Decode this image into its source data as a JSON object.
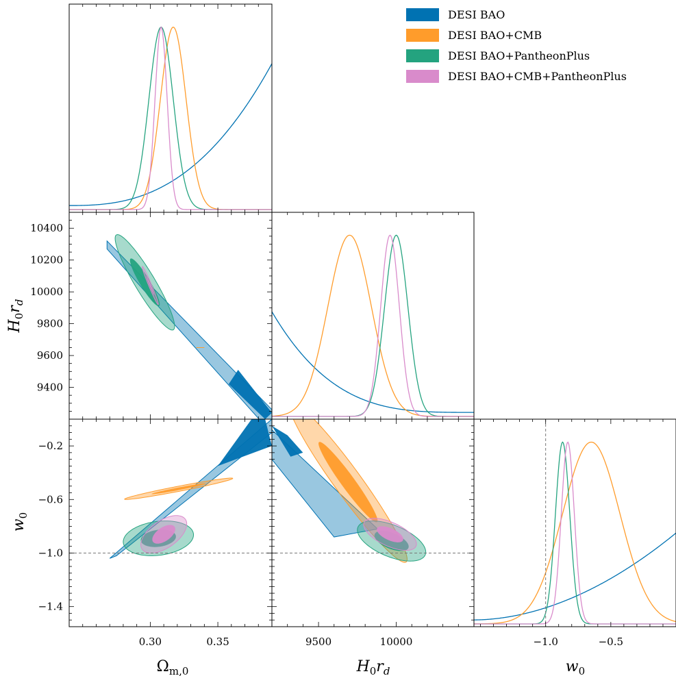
{
  "chart_data": {
    "type": "corner",
    "parameters": [
      {
        "key": "om",
        "label_base": "Ω",
        "label_sub": "m,0",
        "range": [
          0.24,
          0.39
        ],
        "ticks": [
          0.3,
          0.35
        ],
        "tick_labels": [
          "0.30",
          "0.35"
        ]
      },
      {
        "key": "hrd",
        "label_base": "H",
        "label_sub0": "0",
        "label_mid": "r",
        "label_sub1": "d",
        "range": [
          9200,
          10500
        ],
        "ticks": [
          9400,
          9600,
          9800,
          10000,
          10200,
          10400
        ],
        "tick_labels_y": [
          "9400",
          "9600",
          "9800",
          "10000",
          "10200",
          "10400"
        ],
        "x_ticks": [
          9500,
          10000
        ],
        "tick_labels_x": [
          "9500",
          "10000"
        ]
      },
      {
        "key": "w0",
        "label_base": "w",
        "label_sub": "0",
        "range": [
          -1.55,
          0.0
        ],
        "ticks": [
          -1.4,
          -1.0,
          -0.6,
          -0.2
        ],
        "tick_labels_y": [
          "−1.4",
          "−1.0",
          "−0.6",
          "−0.2"
        ],
        "x_ticks": [
          -1.0,
          -0.5
        ],
        "tick_labels_x": [
          "−1.0",
          "−0.5"
        ]
      }
    ],
    "reference_lines": {
      "w0": -1.0
    },
    "series": [
      {
        "name": "DESI BAO",
        "color": "#0072b2",
        "marginals": {
          "om": {
            "type": "rising",
            "start": 0.24,
            "end": 0.39,
            "y0": 0.02,
            "y1": 0.72,
            "curv": 2.6
          },
          "hrd": {
            "type": "falling",
            "start": 9200,
            "end": 10500,
            "y0": 0.52,
            "y1": 0.02,
            "curv": 0.45
          },
          "w0": {
            "type": "rising",
            "start": -1.55,
            "end": 0.0,
            "y0": 0.02,
            "y1": 0.45,
            "curv": 1.9
          }
        },
        "contours": {
          "om_hrd": {
            "center": [
              0.335,
              9780
            ],
            "inner": [
              [
                0.365,
                9510
              ],
              [
                0.39,
                9240
              ],
              [
                0.385,
                9200
              ],
              [
                0.358,
                9420
              ]
            ],
            "outer": [
              [
                0.268,
                10320
              ],
              [
                0.39,
                9260
              ],
              [
                0.39,
                9110
              ],
              [
                0.268,
                10270
              ]
            ]
          },
          "om_w0": {
            "center": [
              0.335,
              -0.5
            ],
            "inner": [
              [
                0.39,
                -0.2
              ],
              [
                0.385,
                0.0
              ],
              [
                0.375,
                0.0
              ],
              [
                0.35,
                -0.35
              ]
            ],
            "outer": [
              [
                0.27,
                -1.04
              ],
              [
                0.39,
                0.0
              ],
              [
                0.39,
                -0.1
              ],
              [
                0.275,
                -1.02
              ]
            ]
          },
          "hrd_w0": {
            "center": [
              9500,
              -0.4
            ],
            "inner": [
              [
                9200,
                -0.05
              ],
              [
                9300,
                -0.12
              ],
              [
                9400,
                -0.25
              ],
              [
                9320,
                -0.28
              ]
            ],
            "outer": [
              [
                9200,
                -0.08
              ],
              [
                9880,
                -0.82
              ],
              [
                9600,
                -0.88
              ],
              [
                9200,
                -0.3
              ]
            ]
          }
        }
      },
      {
        "name": "DESI BAO+CMB",
        "color": "#ff9c2b",
        "marginals": {
          "om": {
            "type": "gauss",
            "mean": 0.317,
            "sigma": 0.0095
          },
          "hrd": {
            "type": "gauss",
            "mean": 9700,
            "sigma": 140
          },
          "w0": {
            "type": "gauss",
            "mean": -0.65,
            "sigma": 0.22
          }
        },
        "contours": {
          "om_hrd": {
            "center": [
              0.337,
              9650
            ],
            "a": 0.0015,
            "b": 0.04,
            "rho": -0.99
          },
          "om_w0": {
            "center": [
              0.321,
              -0.52
            ],
            "a": 0.02,
            "b": 0.04,
            "rho": 0.97
          },
          "hrd_w0": {
            "center": [
              9690,
              -0.47
            ],
            "a": 190,
            "b": 0.3,
            "rho": -0.96
          }
        }
      },
      {
        "name": "DESI BAO+PantheonPlus",
        "color": "#24a37f",
        "marginals": {
          "om": {
            "type": "gauss",
            "mean": 0.308,
            "sigma": 0.009
          },
          "hrd": {
            "type": "gauss",
            "mean": 10000,
            "sigma": 75
          },
          "w0": {
            "type": "gauss",
            "mean": -0.87,
            "sigma": 0.055
          }
        },
        "contours": {
          "om_hrd": {
            "center": [
              0.296,
              10060
            ],
            "a": 0.011,
            "b": 150,
            "rho": -0.92
          },
          "om_w0": {
            "center": [
              0.306,
              -0.89
            ],
            "a": 0.013,
            "b": 0.065,
            "rho": 0.2
          },
          "hrd_w0": {
            "center": [
              9970,
              -0.91
            ],
            "a": 110,
            "b": 0.075,
            "rho": -0.55
          }
        }
      },
      {
        "name": "DESI BAO+CMB+PantheonPlus",
        "color": "#d98bcb",
        "marginals": {
          "om": {
            "type": "gauss",
            "mean": 0.308,
            "sigma": 0.0045
          },
          "hrd": {
            "type": "gauss",
            "mean": 9960,
            "sigma": 60
          },
          "w0": {
            "type": "gauss",
            "mean": -0.83,
            "sigma": 0.05
          }
        },
        "contours": {
          "om_hrd": {
            "center": [
              0.3,
              10040
            ],
            "a": 0.003,
            "b": 60,
            "rho": -0.98
          },
          "om_w0": {
            "center": [
              0.31,
              -0.86
            ],
            "a": 0.0085,
            "b": 0.07,
            "rho": 0.55
          },
          "hrd_w0": {
            "center": [
              9960,
              -0.86
            ],
            "a": 85,
            "b": 0.06,
            "rho": -0.6
          }
        }
      }
    ],
    "legend": {
      "placement": "top-right",
      "entries": [
        "DESI BAO",
        "DESI BAO+CMB",
        "DESI BAO+PantheonPlus",
        "DESI BAO+CMB+PantheonPlus"
      ]
    }
  }
}
